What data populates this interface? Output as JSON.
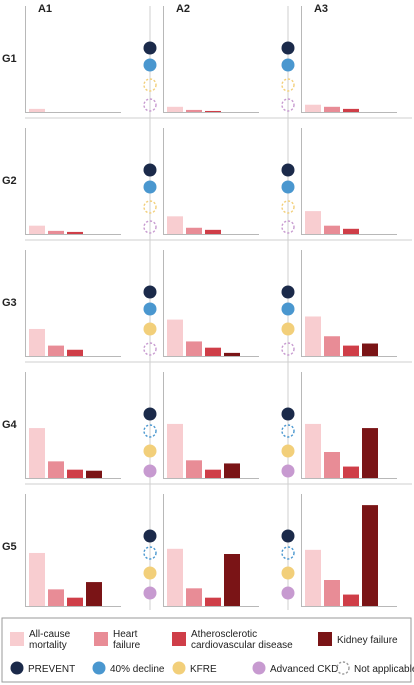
{
  "chart_data": {
    "type": "bar",
    "columns": [
      "A1",
      "A2",
      "A3"
    ],
    "rows": [
      "G1",
      "G2",
      "G3",
      "G4",
      "G5"
    ],
    "categories": [
      "All-cause mortality",
      "Heart failure",
      "Atherosclerotic cardiovascular disease",
      "Kidney failure"
    ],
    "ylim": [
      0,
      100
    ],
    "colors": {
      "All-cause mortality": "#f8cdd0",
      "Heart failure": "#e88c96",
      "Atherosclerotic cardiovascular disease": "#cf3e48",
      "Kidney failure": "#7a1416"
    },
    "values": [
      [
        [
          3,
          0,
          0,
          0
        ],
        [
          5,
          2,
          1,
          0
        ],
        [
          7,
          5,
          3,
          0
        ]
      ],
      [
        [
          8,
          3,
          2,
          0
        ],
        [
          17,
          6,
          4,
          0
        ],
        [
          22,
          8,
          5,
          0
        ]
      ],
      [
        [
          26,
          10,
          6,
          0
        ],
        [
          35,
          14,
          8,
          3
        ],
        [
          38,
          19,
          10,
          12
        ]
      ],
      [
        [
          48,
          16,
          8,
          7
        ],
        [
          52,
          17,
          8,
          14
        ],
        [
          52,
          25,
          11,
          48
        ]
      ],
      [
        [
          51,
          16,
          8,
          23
        ],
        [
          55,
          17,
          8,
          50
        ],
        [
          54,
          25,
          11,
          97
        ]
      ]
    ],
    "model_status": [
      [
        [
          "PREVENT",
          "40% decline",
          "Not applicable",
          "Not applicable"
        ],
        [
          "PREVENT",
          "40% decline",
          "Not applicable",
          "Not applicable"
        ],
        [
          "PREVENT",
          "40% decline",
          "Not applicable",
          "Not applicable"
        ]
      ],
      [
        [
          "PREVENT",
          "40% decline",
          "Not applicable",
          "Not applicable"
        ],
        [
          "PREVENT",
          "40% decline",
          "Not applicable",
          "Not applicable"
        ],
        [
          "PREVENT",
          "40% decline",
          "Not applicable",
          "Not applicable"
        ]
      ],
      [
        [
          "PREVENT",
          "40% decline",
          "KFRE",
          "Not applicable"
        ],
        [
          "PREVENT",
          "40% decline",
          "KFRE",
          "Not applicable"
        ],
        [
          "PREVENT",
          "40% decline",
          "KFRE",
          "Not applicable"
        ]
      ],
      [
        [
          "PREVENT",
          "Not applicable",
          "KFRE",
          "Advanced CKD"
        ],
        [
          "PREVENT",
          "Not applicable",
          "KFRE",
          "Advanced CKD"
        ],
        [
          "PREVENT",
          "Not applicable",
          "KFRE",
          "Advanced CKD"
        ]
      ],
      [
        [
          "PREVENT",
          "Not applicable",
          "KFRE",
          "Advanced CKD"
        ],
        [
          "PREVENT",
          "Not applicable",
          "KFRE",
          "Advanced CKD"
        ],
        [
          "PREVENT",
          "Not applicable",
          "KFRE",
          "Advanced CKD"
        ]
      ]
    ],
    "dot_colors": {
      "PREVENT": "#1b2a4a",
      "40% decline": "#4a97cf",
      "KFRE": "#f2cf7a",
      "Advanced CKD": "#c79ad0"
    },
    "dot_outline_colors": [
      "#1b2a4a",
      "#4a97cf",
      "#f2cf7a",
      "#c79ad0"
    ],
    "legend": {
      "bars": [
        {
          "label_lines": [
            "All-cause",
            "mortality"
          ],
          "color": "#f8cdd0"
        },
        {
          "label_lines": [
            "Heart",
            "failure"
          ],
          "color": "#e88c96"
        },
        {
          "label_lines": [
            "Atherosclerotic",
            "cardiovascular disease"
          ],
          "color": "#cf3e48"
        },
        {
          "label_lines": [
            "Kidney failure"
          ],
          "color": "#7a1416"
        }
      ],
      "dots": [
        {
          "label": "PREVENT",
          "color": "#1b2a4a",
          "dashed": false
        },
        {
          "label": "40% decline",
          "color": "#4a97cf",
          "dashed": false
        },
        {
          "label": "KFRE",
          "color": "#f2cf7a",
          "dashed": false
        },
        {
          "label": "Advanced CKD",
          "color": "#c79ad0",
          "dashed": false
        },
        {
          "label": "Not applicable",
          "color": "#9a9a9a",
          "dashed": true
        }
      ]
    }
  }
}
